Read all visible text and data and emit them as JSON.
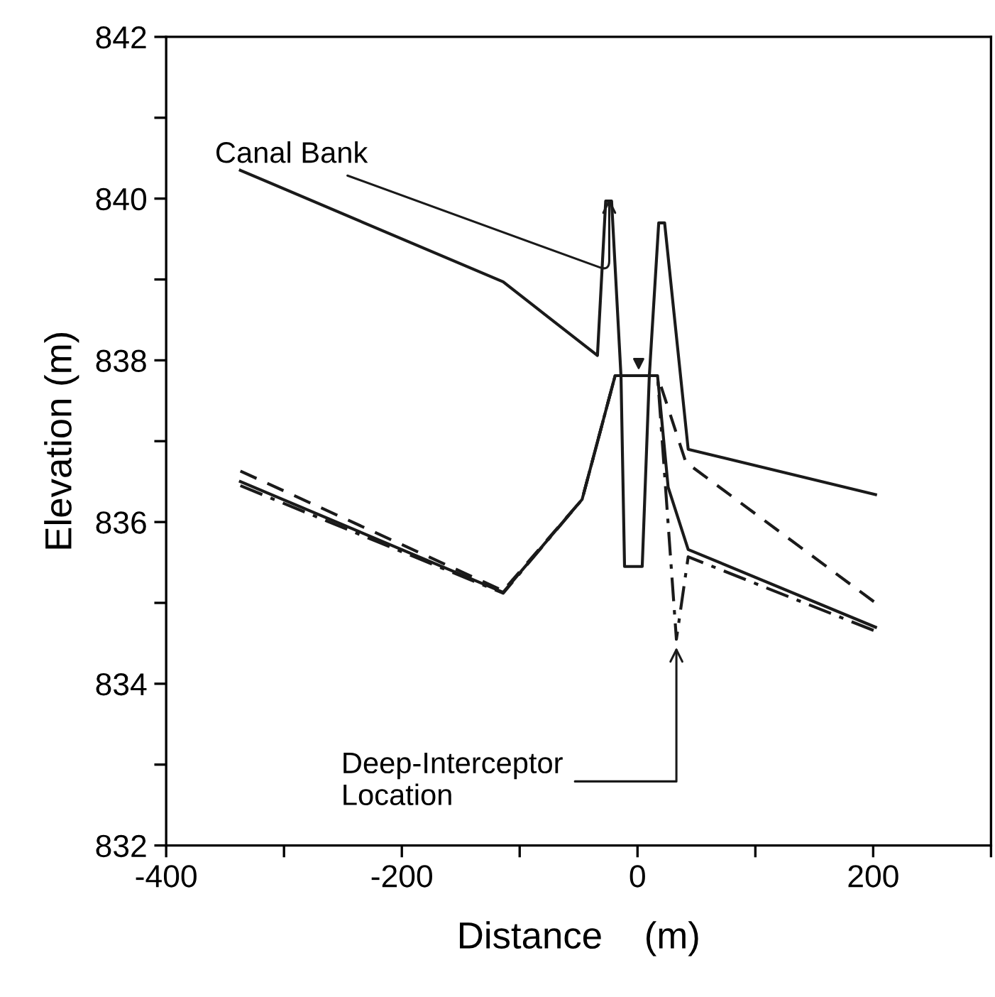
{
  "chart_data": {
    "type": "line",
    "xlabel": "Distance    (m)",
    "ylabel": "Elevation (m)",
    "xlim": [
      -400,
      300
    ],
    "ylim": [
      832,
      842
    ],
    "xticks": [
      -400,
      {
        "value": -300,
        "label": null
      },
      -200,
      {
        "value": -100,
        "label": null
      },
      0,
      {
        "value": 100,
        "label": null
      },
      200,
      {
        "value": 300,
        "label": null
      }
    ],
    "yticks": [
      832,
      {
        "value": 833,
        "label": null
      },
      834,
      {
        "value": 835,
        "label": null
      },
      836,
      {
        "value": 837,
        "label": null
      },
      838,
      {
        "value": 839,
        "label": null
      },
      840,
      {
        "value": 841,
        "label": null
      },
      842
    ],
    "grid": false,
    "legend": false,
    "marker": "none",
    "series": [
      {
        "color": "#1a1a1a",
        "line_style": "solid",
        "x": [
          -337,
          -114,
          -34,
          -27,
          -22,
          -14,
          -11,
          4,
          10,
          18,
          23,
          43,
          202
        ],
        "values": [
          840.35,
          838.97,
          838.06,
          839.97,
          839.97,
          837.8,
          835.45,
          835.45,
          837.8,
          839.7,
          839.7,
          836.9,
          836.34
        ]
      },
      {
        "color": "#1a1a1a",
        "line_style": "solid",
        "x": [
          -337,
          -114,
          -47,
          -19,
          17,
          26,
          43,
          202
        ],
        "values": [
          836.5,
          835.13,
          836.28,
          837.81,
          837.81,
          836.43,
          835.66,
          834.7
        ]
      },
      {
        "color": "#1a1a1a",
        "line_style": "dashed",
        "x": [
          -337,
          -114,
          -47,
          -19,
          17,
          41,
          202
        ],
        "values": [
          836.63,
          835.15,
          836.28,
          837.81,
          837.81,
          836.74,
          835.0
        ]
      },
      {
        "color": "#1a1a1a",
        "line_style": "dashdot",
        "x": [
          -337,
          -114,
          -47,
          -19,
          17,
          33,
          43,
          202
        ],
        "values": [
          836.45,
          835.12,
          836.28,
          837.81,
          837.81,
          834.55,
          835.57,
          834.65
        ]
      },
      {
        "type": "scatter",
        "marker": "triangle",
        "color": "#1a1a1a",
        "x": [
          1
        ],
        "values": [
          837.96
        ]
      }
    ],
    "annotations": [
      {
        "text": "Canal Bank",
        "x": -24,
        "y": 840.05
      },
      {
        "text": "Deep-Interceptor\nLocation",
        "x": 33,
        "y": 834.5
      }
    ]
  }
}
